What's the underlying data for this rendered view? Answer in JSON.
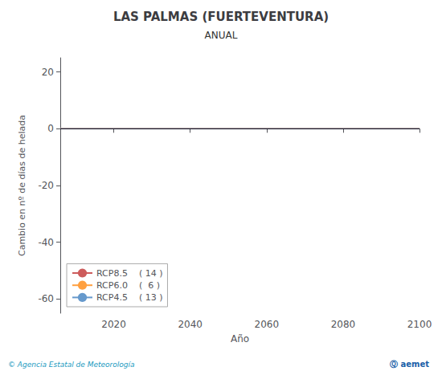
{
  "chart_data": {
    "type": "line",
    "title": "LAS PALMAS (FUERTEVENTURA)",
    "subtitle": "ANUAL",
    "xlabel": "Año",
    "ylabel": "Cambio en nº de días de helada",
    "xlim": [
      2006,
      2100
    ],
    "ylim": [
      -65,
      25
    ],
    "xticks": [
      2020,
      2040,
      2060,
      2080,
      2100
    ],
    "yticks": [
      -60,
      -40,
      -20,
      0,
      20
    ],
    "grid": false,
    "legend": "lower left",
    "series": [
      {
        "name": "RCP8.5    ( 14 )",
        "color": "#cd5c5c",
        "x": [
          2006,
          2100
        ],
        "values": [
          0,
          0
        ]
      },
      {
        "name": "RCP6.0    (  6 )",
        "color": "#ffa040",
        "x": [
          2006,
          2100
        ],
        "values": [
          0,
          0
        ]
      },
      {
        "name": "RCP4.5    ( 13 )",
        "color": "#6699cc",
        "x": [
          2006,
          2100
        ],
        "values": [
          0,
          0
        ]
      }
    ],
    "reference_line": {
      "y": 0,
      "color": "#1a1a2e"
    },
    "footer_left": {
      "text": "© Agencia Estatal de Meteorología",
      "color": "#1a9ac0"
    },
    "footer_right": {
      "text": "Ⓠ aemet",
      "color": "#1a5fa8"
    }
  }
}
